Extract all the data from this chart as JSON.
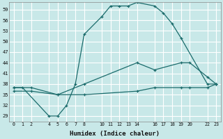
{
  "xlabel": "Humidex (Indice chaleur)",
  "bg_color": "#c8e8e8",
  "grid_color": "#ffffff",
  "line_color": "#1a6b6b",
  "x_ticks": [
    0,
    1,
    2,
    4,
    5,
    6,
    7,
    8,
    10,
    11,
    12,
    13,
    14,
    16,
    17,
    18,
    19,
    20,
    22,
    23
  ],
  "xlim": [
    -0.5,
    23.5
  ],
  "ylim": [
    27.5,
    61
  ],
  "y_ticks": [
    29,
    32,
    35,
    38,
    41,
    44,
    47,
    50,
    53,
    56,
    59
  ],
  "line1": {
    "x": [
      0,
      1,
      4,
      5,
      6,
      7,
      8,
      10,
      11,
      12,
      13,
      14,
      16,
      17,
      18,
      19,
      22,
      23
    ],
    "y": [
      37,
      37,
      29,
      29,
      32,
      38,
      52,
      57,
      60,
      60,
      60,
      61,
      60,
      58,
      55,
      51,
      38,
      38
    ]
  },
  "line2": {
    "x": [
      0,
      2,
      5,
      8,
      14,
      16,
      19,
      20,
      22,
      23
    ],
    "y": [
      37,
      37,
      35,
      38,
      44,
      42,
      44,
      44,
      40,
      38
    ]
  },
  "line3": {
    "x": [
      0,
      2,
      5,
      8,
      14,
      16,
      19,
      20,
      22,
      23
    ],
    "y": [
      36,
      36,
      35,
      35,
      36,
      37,
      37,
      37,
      37,
      38
    ]
  }
}
